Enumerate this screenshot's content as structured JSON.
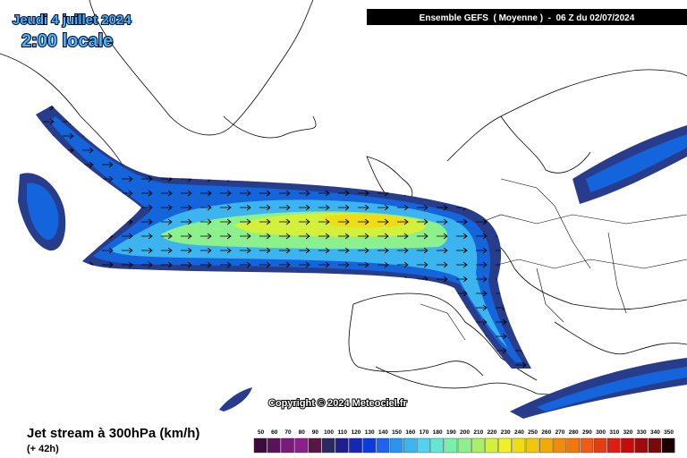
{
  "header": {
    "date": "Jeudi 4 juillet 2024",
    "time": "2:00 locale",
    "run": "Ensemble GEFS  ( Moyenne )  -  06 Z du 02/07/2024"
  },
  "map": {
    "copyright": "Copyright © 2024 Meteociel.fr"
  },
  "footer": {
    "title": "Jet stream à 300hPa (km/h)",
    "lead": "(+ 42h)"
  },
  "legend": {
    "values": [
      50,
      60,
      70,
      80,
      90,
      100,
      110,
      120,
      130,
      140,
      150,
      160,
      170,
      180,
      190,
      200,
      210,
      220,
      230,
      240,
      250,
      260,
      270,
      280,
      290,
      300,
      310,
      320,
      330,
      340,
      350
    ],
    "colors": [
      "#3c0a3c",
      "#5a125a",
      "#7a1a7a",
      "#8c1e8c",
      "#5a1448",
      "#2a2a60",
      "#1e1e8c",
      "#1428b4",
      "#0a3cdc",
      "#1e64f0",
      "#2896f0",
      "#3cb4f0",
      "#50d2f0",
      "#64e6d2",
      "#78f0aa",
      "#8cf08c",
      "#aaf064",
      "#d2f03c",
      "#f0f028",
      "#f0dc14",
      "#f0c80a",
      "#f0aa0a",
      "#f08c0a",
      "#f0780a",
      "#f05a14",
      "#e63c14",
      "#dc1e14",
      "#c80a0a",
      "#a00a0a",
      "#780a0a",
      "#1a0000"
    ]
  }
}
